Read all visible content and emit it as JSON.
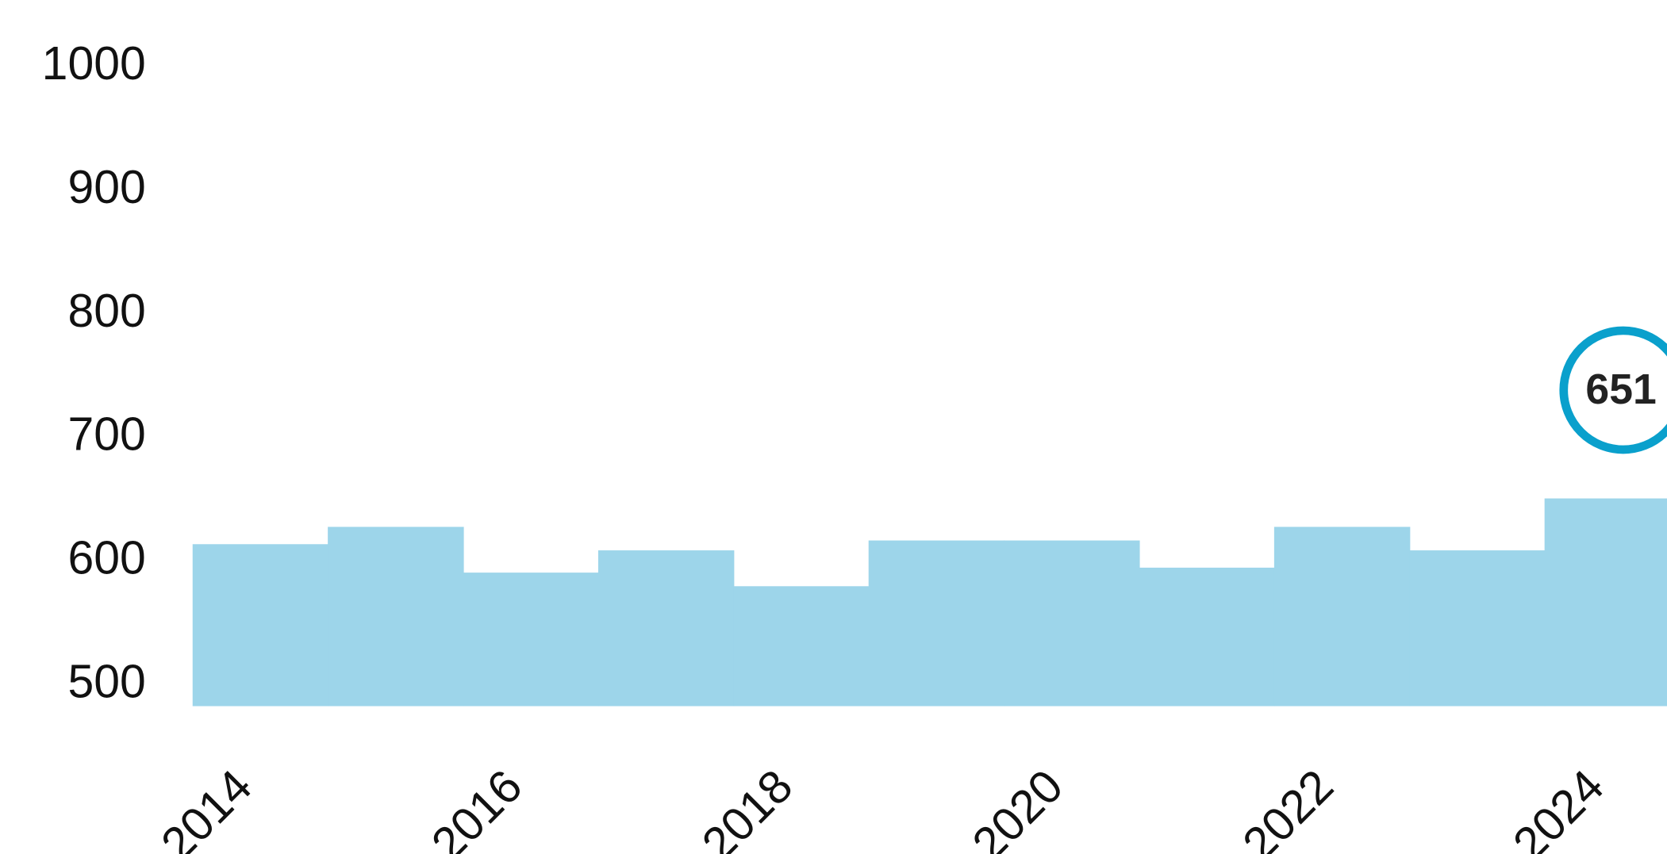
{
  "chart_data": {
    "type": "step-area",
    "categories": [
      "2014",
      null,
      "2016",
      null,
      "2018",
      null,
      "2020",
      null,
      "2022",
      null,
      "2024"
    ],
    "values": [
      614,
      628,
      591,
      609,
      580,
      617,
      617,
      595,
      628,
      609,
      651
    ],
    "color": "#9dd5ea",
    "highlight_color": "#0aa0cc",
    "ylim": [
      483,
      1000
    ],
    "yticks": [
      500,
      600,
      700,
      800,
      900,
      1000
    ],
    "grid": false
  }
}
